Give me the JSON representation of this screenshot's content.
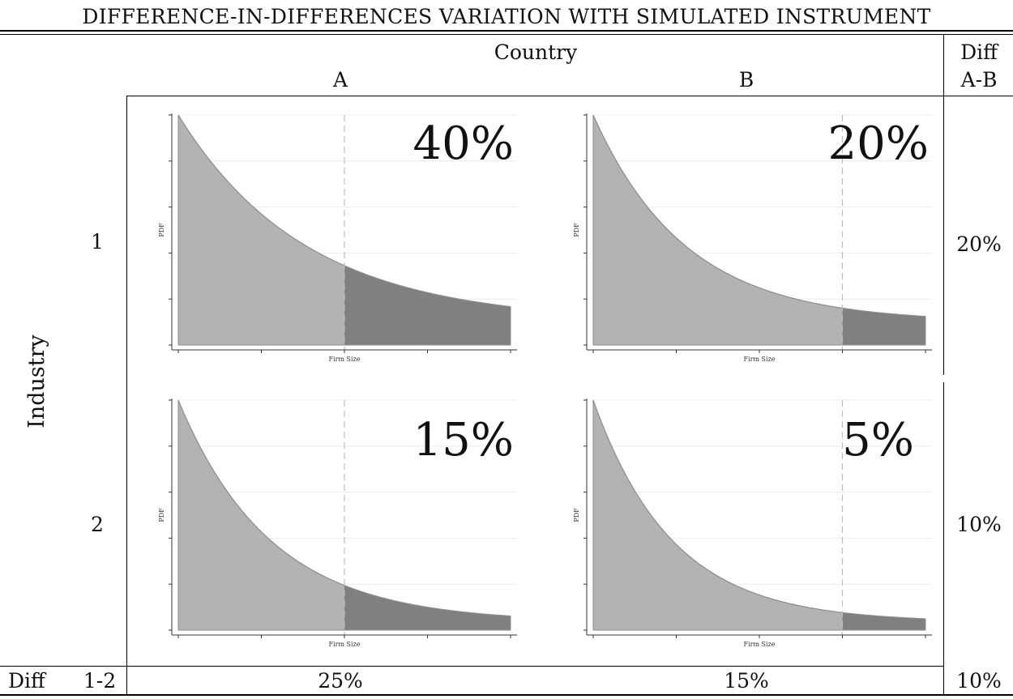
{
  "title": "DIFFERENCE-IN-DIFFERENCES VARIATION WITH SIMULATED INSTRUMENT",
  "header": {
    "group_label": "Country",
    "col_a": "A",
    "col_b": "B",
    "diff_col_line1": "Diff",
    "diff_col_line2": "A-B"
  },
  "row_axis_label": "Industry",
  "rows": [
    {
      "label": "1",
      "diff_ab": "20%"
    },
    {
      "label": "2",
      "diff_ab": "10%"
    }
  ],
  "footer": {
    "label_left": "Diff",
    "label_right": "1-2",
    "diff_a": "25%",
    "diff_b": "15%",
    "diff_total": "10%"
  },
  "panels": [
    {
      "id": "1A",
      "share_label": "40%",
      "ylabel": "PDF",
      "xlabel": "Firm Size"
    },
    {
      "id": "1B",
      "share_label": "20%",
      "ylabel": "PDF",
      "xlabel": "Firm Size"
    },
    {
      "id": "2A",
      "share_label": "15%",
      "ylabel": "PDF",
      "xlabel": "Firm Size"
    },
    {
      "id": "2B",
      "share_label": "5%",
      "ylabel": "PDF",
      "xlabel": "Firm Size"
    }
  ],
  "chart_data": [
    {
      "type": "area",
      "panel": "1A",
      "xlabel": "Firm Size",
      "ylabel": "PDF",
      "decay_rate": 2.6,
      "tail_level": 0.1,
      "cutoff_fraction": 0.5,
      "shaded_share": "40%"
    },
    {
      "type": "area",
      "panel": "1B",
      "xlabel": "Firm Size",
      "ylabel": "PDF",
      "decay_rate": 3.6,
      "tail_level": 0.1,
      "cutoff_fraction": 0.75,
      "shaded_share": "20%"
    },
    {
      "type": "area",
      "panel": "2A",
      "xlabel": "Firm Size",
      "ylabel": "PDF",
      "decay_rate": 3.6,
      "tail_level": 0.035,
      "cutoff_fraction": 0.5,
      "shaded_share": "15%"
    },
    {
      "type": "area",
      "panel": "2B",
      "xlabel": "Firm Size",
      "ylabel": "PDF",
      "decay_rate": 4.2,
      "tail_level": 0.035,
      "cutoff_fraction": 0.75,
      "shaded_share": "5%"
    }
  ],
  "colors": {
    "light_fill": "#b3b3b3",
    "dark_fill": "#808080",
    "curve": "#8c8c8c",
    "grid": "#ececec",
    "cutoff_line": "#bdbdbd"
  }
}
